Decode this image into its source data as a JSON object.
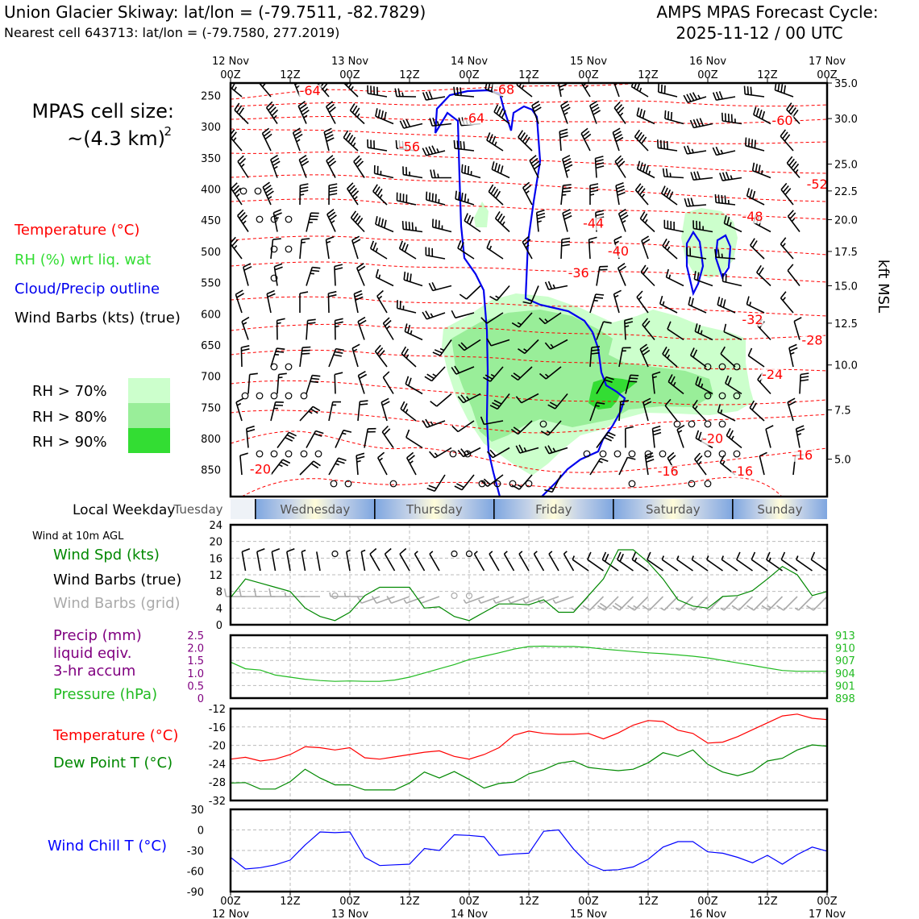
{
  "header": {
    "site": "Union Glacier Skiway: lat/lon = (-79.7511, -82.7829)",
    "cell": "Nearest cell 643713: lat/lon = (-79.7580, 277.2019)",
    "model": "AMPS MPAS Forecast Cycle:",
    "cycle": "2025-11-12 / 00 UTC"
  },
  "left_legend": {
    "cell_size_title": "MPAS cell size:",
    "cell_size_value": "~(4.3 km)",
    "cell_size_exp": "2",
    "temperature": "Temperature (°C)",
    "rh": "RH (%) wrt liq. wat",
    "cloud": "Cloud/Precip outline",
    "barbs": "Wind Barbs (kts) (true)",
    "rh70": "RH > 70%",
    "rh80": "RH > 80%",
    "rh90": "RH > 90%",
    "local_weekday": "Local Weekday",
    "wind_at": "Wind at 10m AGL",
    "wind_spd": "Wind Spd (kts)",
    "wind_barbs_true": "Wind Barbs (true)",
    "wind_barbs_grid": "Wind Barbs (grid)",
    "precip1": "Precip (mm)",
    "precip2": "liquid eqiv.",
    "precip3": "3-hr accum",
    "pressure": "Pressure (hPa)",
    "temp2": "Temperature (°C)",
    "dew": "Dew Point T (°C)",
    "windchill": "Wind Chill T (°C)"
  },
  "colors": {
    "temperature": "#ff0000",
    "rh70": "#ccffcc",
    "rh80": "#99ee99",
    "rh90": "#33dd33",
    "cloud": "#0000ee",
    "windspd": "#008800",
    "grid_barb": "#aaaaaa",
    "precip_label": "#800080",
    "pressure": "#22bb22",
    "windchill": "#0000ff",
    "sky_blue": "#7ea6e0",
    "sky_cream": "#fffcd9"
  },
  "chart_data": [
    {
      "id": "time_height",
      "type": "contour",
      "x_ticks_top": [
        "00Z",
        "12Z",
        "00Z",
        "12Z",
        "00Z",
        "12Z",
        "00Z",
        "12Z",
        "00Z",
        "12Z",
        "00Z"
      ],
      "date_ticks_top": [
        "12 Nov",
        "13 Nov",
        "14 Nov",
        "15 Nov",
        "16 Nov",
        "17 Nov"
      ],
      "x_hours_range": [
        0,
        120
      ],
      "ylabel_left": "Pressure (hPa)",
      "y_left_range": [
        893,
        230
      ],
      "y_left_ticks": [
        250,
        300,
        350,
        400,
        450,
        500,
        550,
        600,
        650,
        700,
        750,
        800,
        850
      ],
      "ylabel_right": "kft MSL",
      "y_right_ticks": [
        {
          "label": "35.0",
          "p": 230
        },
        {
          "label": "30.0",
          "p": 287
        },
        {
          "label": "25.0",
          "p": 360
        },
        {
          "label": "22.5",
          "p": 403
        },
        {
          "label": "20.0",
          "p": 449
        },
        {
          "label": "17.5",
          "p": 500
        },
        {
          "label": "15.0",
          "p": 555
        },
        {
          "label": "12.5",
          "p": 615
        },
        {
          "label": "10.0",
          "p": 682
        },
        {
          "label": "7.5",
          "p": 754
        },
        {
          "label": "5.0",
          "p": 833
        }
      ],
      "temp_labels": [
        {
          "t": "-64",
          "x": 16,
          "p": 248
        },
        {
          "t": "-64",
          "x": 49,
          "p": 292
        },
        {
          "t": "-68",
          "x": 55,
          "p": 246
        },
        {
          "t": "-56",
          "x": 36,
          "p": 338
        },
        {
          "t": "-60",
          "x": 111,
          "p": 296
        },
        {
          "t": "-52",
          "x": 118,
          "p": 398
        },
        {
          "t": "-44",
          "x": 73,
          "p": 461
        },
        {
          "t": "-48",
          "x": 105,
          "p": 450
        },
        {
          "t": "-40",
          "x": 78,
          "p": 505
        },
        {
          "t": "-36",
          "x": 70,
          "p": 540
        },
        {
          "t": "-32",
          "x": 105,
          "p": 615
        },
        {
          "t": "-28",
          "x": 117,
          "p": 648
        },
        {
          "t": "-24",
          "x": 109,
          "p": 703
        },
        {
          "t": "-20",
          "x": 97,
          "p": 806
        },
        {
          "t": "-16",
          "x": 115,
          "p": 832
        },
        {
          "t": "-16",
          "x": 88,
          "p": 858
        },
        {
          "t": "-16",
          "x": 103,
          "p": 858
        },
        {
          "t": "-20",
          "x": 6,
          "p": 855
        }
      ]
    },
    {
      "id": "weekday",
      "type": "band",
      "days": [
        "Tuesday",
        "Wednesday",
        "Thursday",
        "Friday",
        "Saturday",
        "Sunday"
      ]
    },
    {
      "id": "wind10m",
      "type": "line",
      "x_hours": [
        0,
        3,
        6,
        9,
        12,
        15,
        18,
        21,
        24,
        27,
        30,
        33,
        36,
        39,
        42,
        45,
        48,
        51,
        54,
        57,
        60,
        63,
        66,
        69,
        72,
        75,
        78,
        81,
        84,
        87,
        90,
        93,
        96,
        99,
        102,
        105,
        108,
        111,
        114,
        117,
        120
      ],
      "series": [
        {
          "name": "Wind Spd (kts)",
          "values": [
            6.5,
            11,
            10,
            9,
            8,
            4,
            2,
            1,
            3,
            7,
            9,
            9,
            9,
            4,
            4.3,
            2,
            1,
            3,
            5,
            5,
            4.8,
            6,
            3,
            3,
            7,
            11,
            18,
            18,
            15,
            11,
            6,
            4.5,
            4,
            6.8,
            7,
            8.2,
            11,
            14,
            12,
            7,
            8
          ]
        }
      ],
      "ylim": [
        0,
        24
      ],
      "yticks": [
        0,
        4,
        8,
        12,
        16,
        20,
        24
      ],
      "calm_hours": [
        20,
        22,
        45,
        48
      ]
    },
    {
      "id": "precip_pressure",
      "type": "line",
      "x_hours": [
        0,
        3,
        6,
        9,
        12,
        15,
        18,
        21,
        24,
        27,
        30,
        33,
        36,
        39,
        42,
        45,
        48,
        51,
        54,
        57,
        60,
        63,
        66,
        69,
        72,
        75,
        78,
        81,
        84,
        87,
        90,
        93,
        96,
        99,
        102,
        105,
        108,
        111,
        114,
        117,
        120
      ],
      "series": [
        {
          "name": "Pressure (hPa)",
          "values": [
            906.6,
            905,
            904.7,
            903.5,
            903,
            902.5,
            902.2,
            902,
            902.1,
            902,
            902,
            902.3,
            903,
            904,
            905,
            906,
            907.2,
            908,
            908.8,
            909.7,
            910.3,
            910.4,
            910.3,
            910.3,
            910.1,
            909.7,
            909.4,
            909.1,
            908.8,
            908.6,
            908.3,
            908,
            907.6,
            907,
            906.4,
            905.8,
            905.2,
            904.6,
            904.4,
            904.4,
            904.4
          ]
        }
      ],
      "precip_ylim": [
        0,
        2.5
      ],
      "precip_ticks": [
        "2.5",
        "2.0",
        "1.5",
        "1.0",
        "0.5",
        "0"
      ],
      "pressure_ylim": [
        898,
        913
      ],
      "pressure_ticks": [
        "913",
        "910",
        "907",
        "904",
        "901",
        "898"
      ],
      "pressure_unit": "(hPa)"
    },
    {
      "id": "temp_dew",
      "type": "line",
      "x_hours": [
        0,
        3,
        6,
        9,
        12,
        15,
        18,
        21,
        24,
        27,
        30,
        33,
        36,
        39,
        42,
        45,
        48,
        51,
        54,
        57,
        60,
        63,
        66,
        69,
        72,
        75,
        78,
        81,
        84,
        87,
        90,
        93,
        96,
        99,
        102,
        105,
        108,
        111,
        114,
        117,
        120
      ],
      "series": [
        {
          "name": "Temperature (°C)",
          "values": [
            -23,
            -22.6,
            -23.4,
            -23,
            -22,
            -20.3,
            -20.5,
            -21,
            -20.5,
            -22.7,
            -23,
            -22.5,
            -22,
            -21.5,
            -21.2,
            -22.4,
            -23,
            -22,
            -20.5,
            -17.8,
            -16.9,
            -17.4,
            -17.6,
            -17.6,
            -17.4,
            -18.6,
            -17.3,
            -15.6,
            -14.6,
            -14.8,
            -16.7,
            -17.4,
            -19.5,
            -19.3,
            -18.1,
            -16.6,
            -15.1,
            -13.6,
            -13.2,
            -14.1,
            -14.4
          ]
        },
        {
          "name": "Dew Point T (°C)",
          "values": [
            -28.2,
            -28.1,
            -29.5,
            -29.5,
            -27.9,
            -25.2,
            -27.1,
            -28.6,
            -28.6,
            -29.7,
            -29.7,
            -29.7,
            -28.2,
            -25.8,
            -27.1,
            -25.7,
            -27.4,
            -29.3,
            -28.3,
            -28,
            -26.2,
            -25.3,
            -23.9,
            -23.4,
            -24.8,
            -25.2,
            -25.5,
            -25.2,
            -23.8,
            -21.6,
            -22.4,
            -21,
            -24.1,
            -25.8,
            -26.6,
            -25.7,
            -23.4,
            -22.8,
            -21,
            -19.9,
            -20.2
          ]
        }
      ],
      "ylim": [
        -32,
        -12
      ],
      "yticks": [
        -32,
        -28,
        -24,
        -20,
        -16,
        -12
      ]
    },
    {
      "id": "windchill",
      "type": "line",
      "x_hours": [
        0,
        3,
        6,
        9,
        12,
        15,
        18,
        21,
        24,
        27,
        30,
        33,
        36,
        39,
        42,
        45,
        48,
        51,
        54,
        57,
        60,
        63,
        66,
        69,
        72,
        75,
        78,
        81,
        84,
        87,
        90,
        93,
        96,
        99,
        102,
        105,
        108,
        111,
        114,
        117,
        120
      ],
      "series": [
        {
          "name": "Wind Chill T (°C)",
          "values": [
            -40,
            -57,
            -55,
            -51,
            -44,
            -22,
            -3,
            -4,
            -3,
            -40,
            -52,
            -51,
            -50,
            -27,
            -30,
            -7,
            -8,
            -10,
            -37,
            -35,
            -34,
            -2,
            0,
            -28,
            -50,
            -59,
            -58,
            -54,
            -43,
            -25,
            -17,
            -17,
            -32,
            -34,
            -40,
            -48,
            -37,
            -50,
            -36,
            -25,
            -31
          ]
        }
      ],
      "ylim": [
        -90,
        30
      ],
      "yticks": [
        -90,
        -60,
        -30,
        0,
        30
      ]
    }
  ],
  "bottom_axis": {
    "hour_ticks": [
      "00Z",
      "12Z",
      "00Z",
      "12Z",
      "00Z",
      "12Z",
      "00Z",
      "12Z",
      "00Z",
      "12Z",
      "00Z"
    ],
    "date_ticks": [
      "12 Nov",
      "13 Nov",
      "14 Nov",
      "15 Nov",
      "16 Nov",
      "17 Nov"
    ]
  }
}
